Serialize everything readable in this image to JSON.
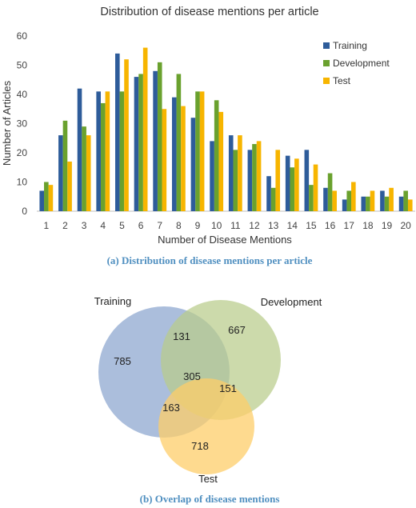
{
  "chart_data": [
    {
      "type": "bar",
      "title": "Distribution of disease mentions per article",
      "xlabel": "Number of Disease Mentions",
      "ylabel": "Number of Articles",
      "ylim": [
        0,
        60
      ],
      "yticks": [
        "0",
        "10",
        "20",
        "30",
        "40",
        "50",
        "60"
      ],
      "grid": false,
      "legend_position": "top-right",
      "categories": [
        "1",
        "2",
        "3",
        "4",
        "5",
        "6",
        "7",
        "8",
        "9",
        "10",
        "11",
        "12",
        "13",
        "14",
        "15",
        "16",
        "17",
        "18",
        "19",
        "20"
      ],
      "series": [
        {
          "name": "Training",
          "color": "#2e5c9a",
          "values": [
            7,
            26,
            42,
            41,
            54,
            46,
            48,
            39,
            32,
            24,
            26,
            21,
            12,
            19,
            21,
            8,
            4,
            5,
            7,
            5
          ]
        },
        {
          "name": "Development",
          "color": "#6aa12e",
          "values": [
            10,
            31,
            29,
            37,
            41,
            47,
            51,
            47,
            41,
            38,
            21,
            23,
            8,
            15,
            9,
            13,
            7,
            5,
            5,
            7
          ]
        },
        {
          "name": "Test",
          "color": "#f7b500",
          "values": [
            9,
            17,
            26,
            41,
            52,
            56,
            35,
            36,
            41,
            34,
            26,
            24,
            21,
            18,
            16,
            7,
            10,
            7,
            8,
            4
          ]
        }
      ],
      "caption": "(a) Distribution of disease mentions per article"
    },
    {
      "type": "venn",
      "sets": [
        {
          "name": "Training",
          "color": "#8fa8d0"
        },
        {
          "name": "Development",
          "color": "#b8cc8a"
        },
        {
          "name": "Test",
          "color": "#fdcd6a"
        }
      ],
      "regions": {
        "training_only": "785",
        "development_only": "667",
        "test_only": "718",
        "training_development": "131",
        "development_test": "151",
        "training_test": "163",
        "all_three": "305"
      },
      "caption": "(b) Overlap of disease mentions"
    }
  ]
}
